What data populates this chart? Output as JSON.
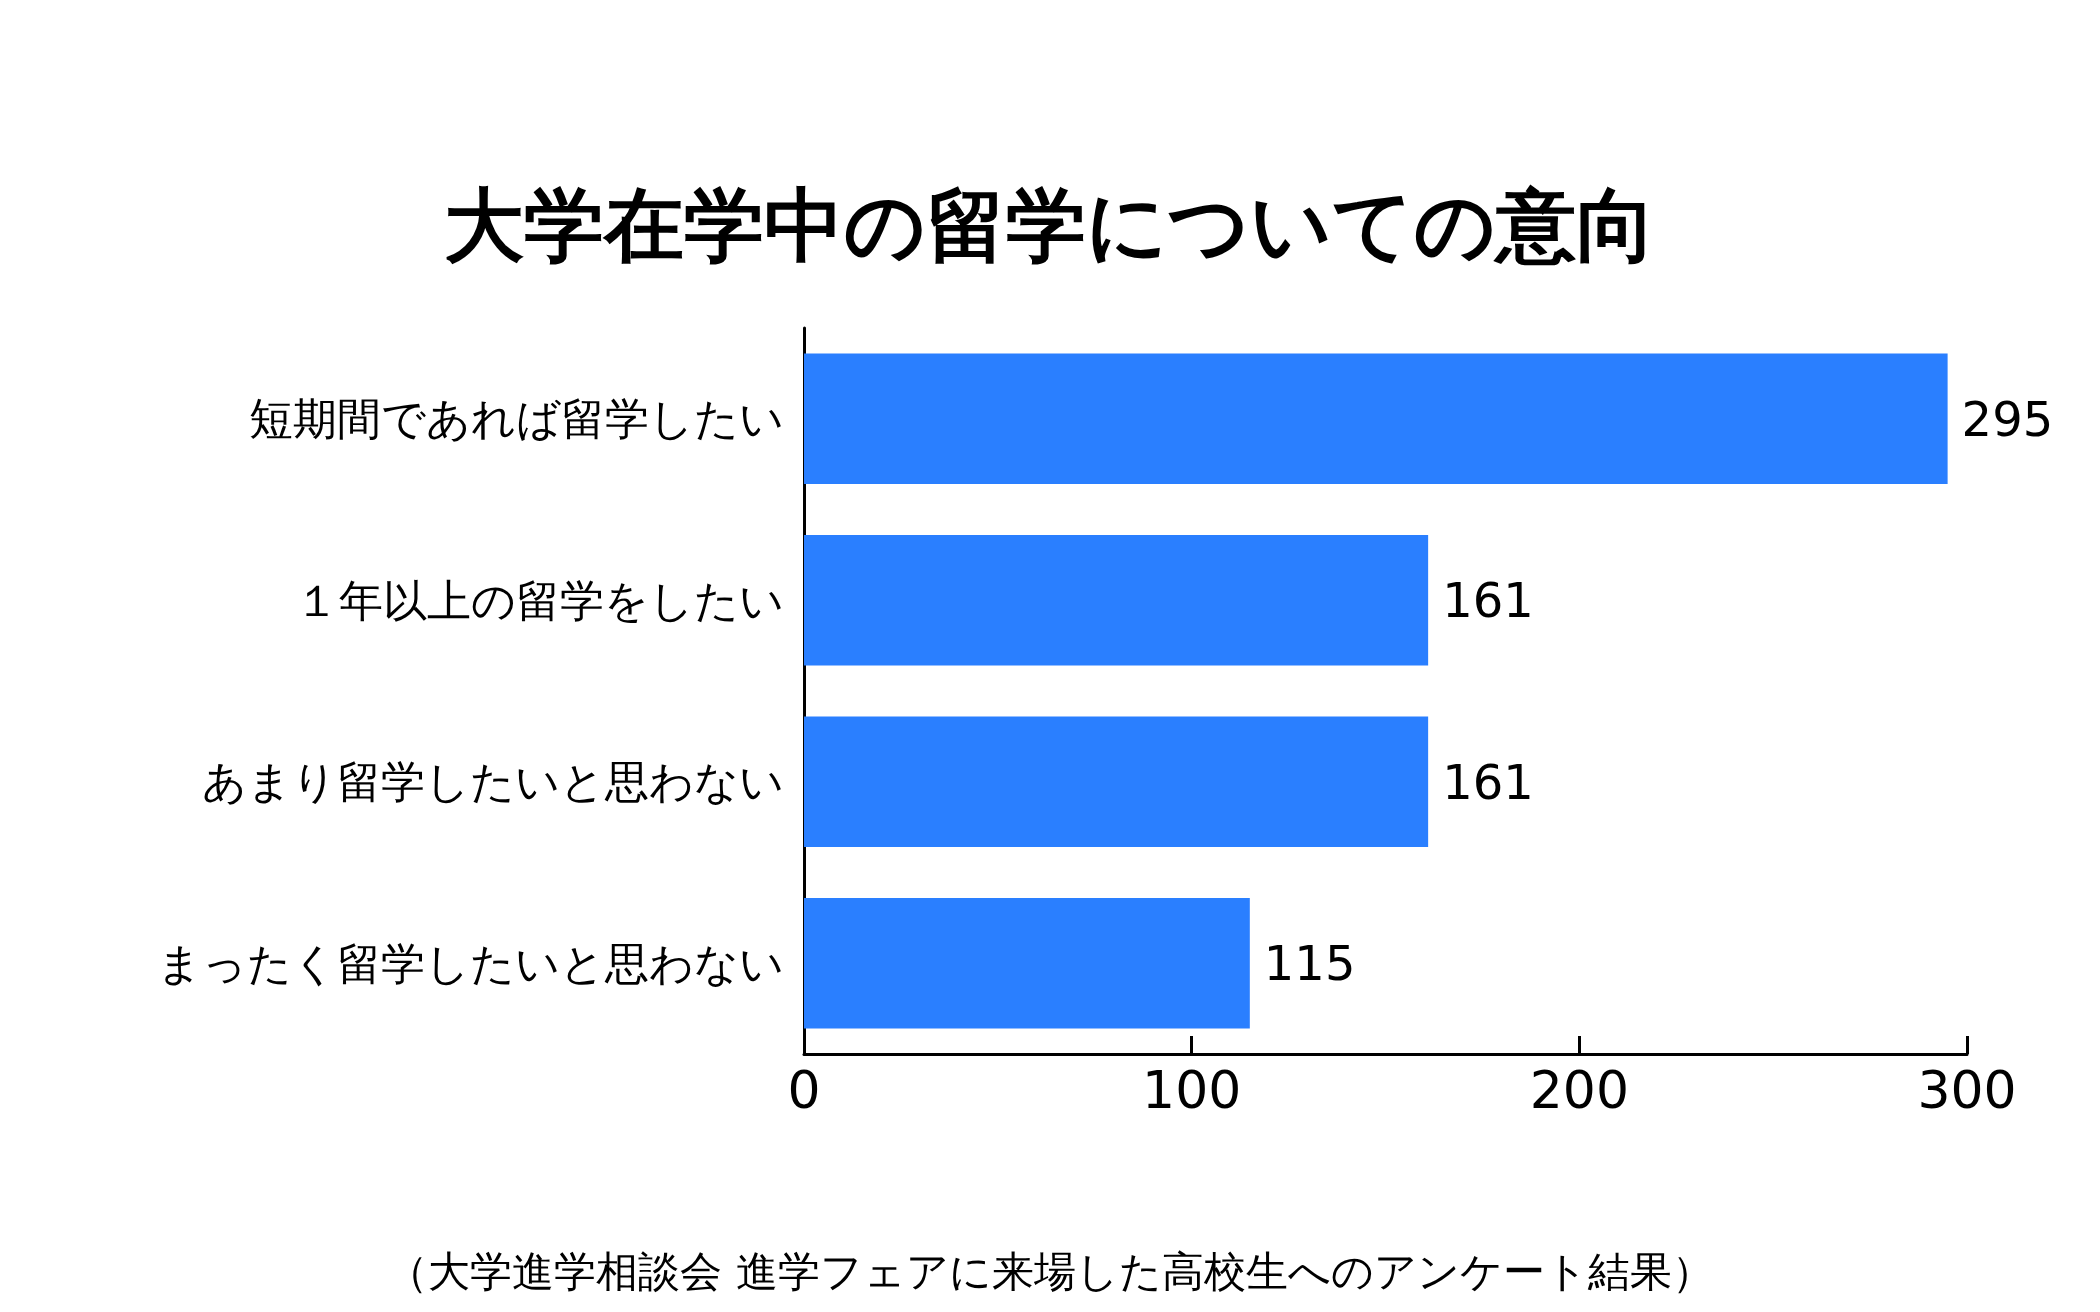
{
  "chart_data": {
    "type": "bar",
    "orientation": "horizontal",
    "title": "大学在学中の留学についての意向",
    "categories": [
      "短期間であれば留学したい",
      "１年以上の留学をしたい",
      "あまり留学したいと思わない",
      "まったく留学したいと思わない"
    ],
    "values": [
      295,
      161,
      161,
      115
    ],
    "color": "#2a7fff",
    "xlim": [
      0,
      300
    ],
    "xticks": [
      0,
      100,
      200,
      300
    ],
    "grid": false,
    "data_labels": true,
    "annotations": [
      "（大学進学相談会 進学フェアに来場した高校生へのアンケート結果）"
    ]
  }
}
